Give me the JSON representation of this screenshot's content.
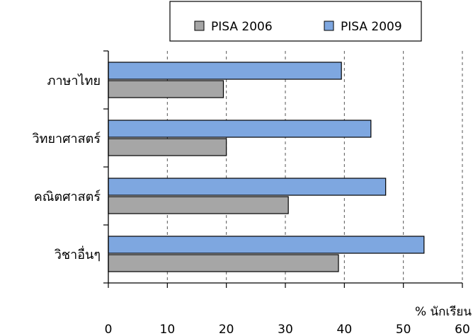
{
  "chart_data": {
    "type": "bar",
    "orientation": "horizontal",
    "categories": [
      "ภาษาไทย",
      "วิทยาศาสตร์",
      "คณิตศาสตร์",
      "วิชาอื่นๆ"
    ],
    "series": [
      {
        "name": "PISA 2006",
        "values": [
          19.5,
          20,
          30.5,
          39
        ],
        "color": "#a6a6a6"
      },
      {
        "name": "PISA 2009",
        "values": [
          39.5,
          44.5,
          47,
          53.5
        ],
        "color": "#7ea7e0"
      }
    ],
    "xlabel": "% นักเรียน",
    "ylabel": "",
    "xlim": [
      0,
      60
    ],
    "xticks": [
      "0",
      "10",
      "20",
      "30",
      "40",
      "50",
      "60"
    ],
    "grid": true,
    "legend_position": "top"
  }
}
